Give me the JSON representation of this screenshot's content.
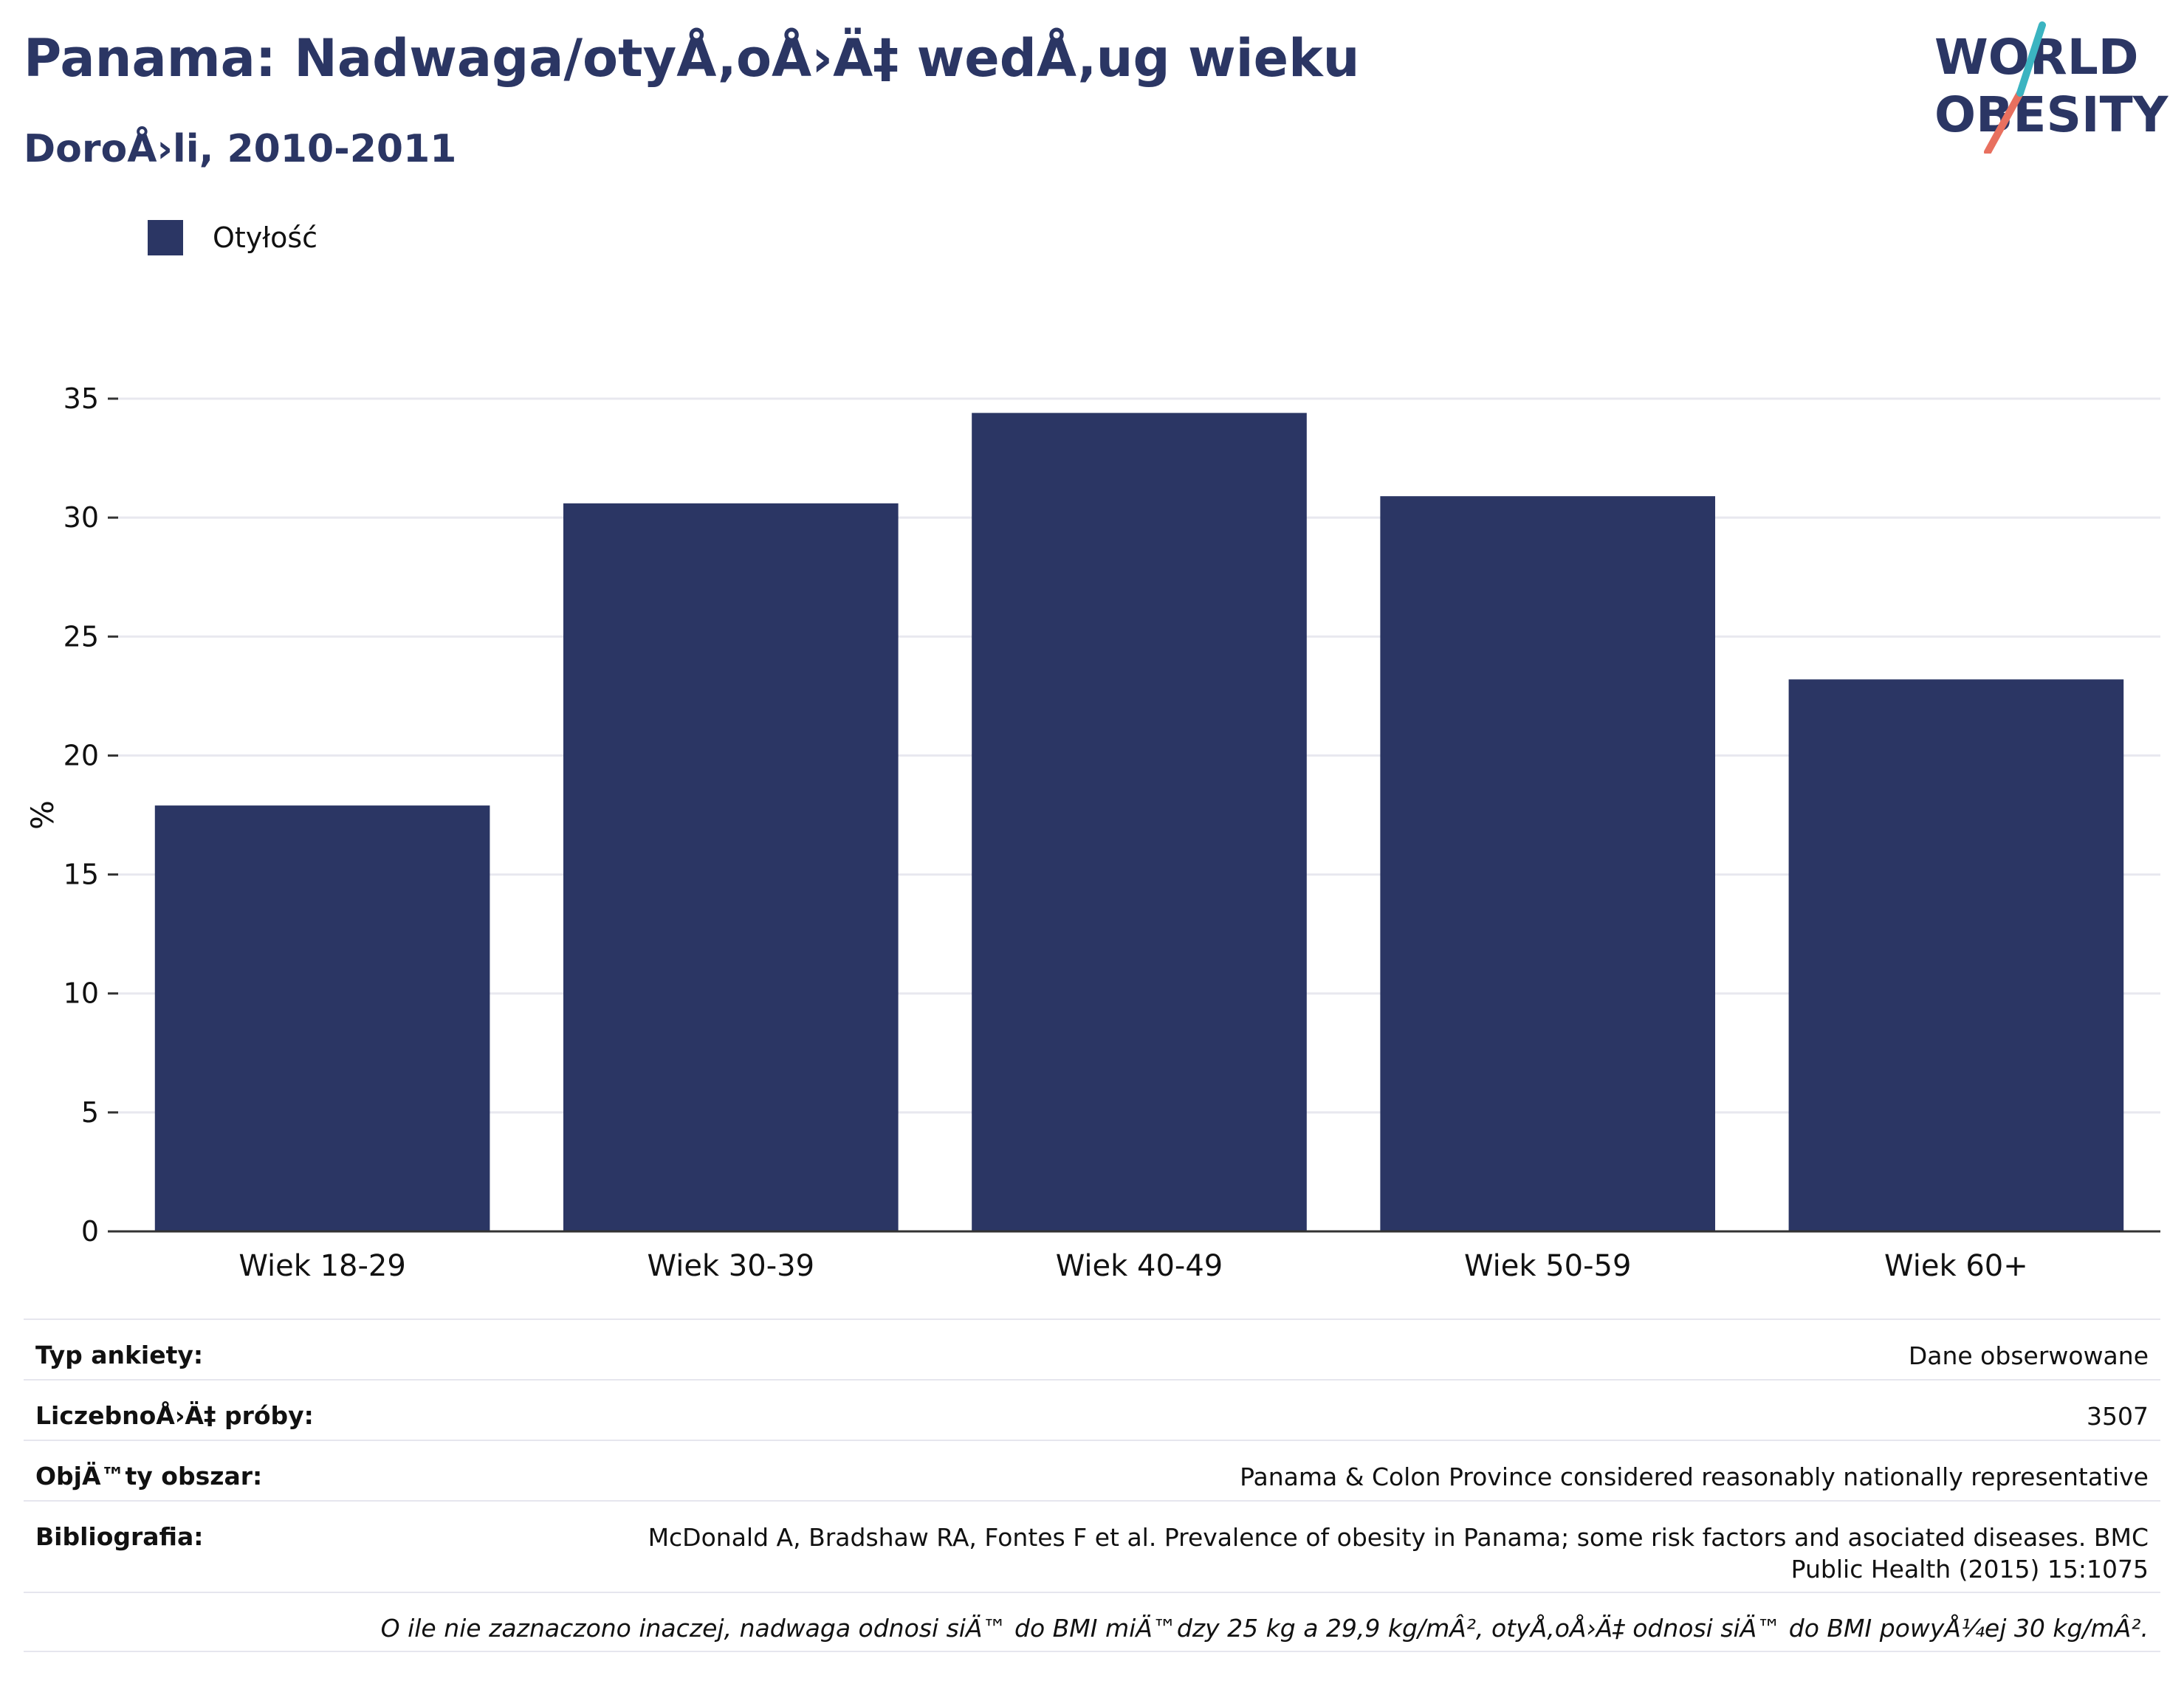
{
  "header": {
    "title": "Panama: Nadwaga/otyÅ‚oÅ›Ä‡ wedÅ‚ug wieku",
    "subtitle": "DoroÅ›li, 2010-2011"
  },
  "logo": {
    "line1": "WORLD",
    "line2": "OBESITY"
  },
  "legend": {
    "label": "Otyłość"
  },
  "colors": {
    "bar": "#2b3664",
    "accent_teal": "#3bb4c1",
    "accent_coral": "#e8705f"
  },
  "chart_data": {
    "type": "bar",
    "categories": [
      "Wiek 18-29",
      "Wiek 30-39",
      "Wiek 40-49",
      "Wiek 50-59",
      "Wiek 60+"
    ],
    "series": [
      {
        "name": "Otyłość",
        "values": [
          17.9,
          30.6,
          34.4,
          30.9,
          23.2
        ]
      }
    ],
    "ylabel": "%",
    "ylim": [
      0,
      35
    ],
    "yticks": [
      0,
      5,
      10,
      15,
      20,
      25,
      30,
      35
    ],
    "grid": true,
    "legend_position": "top-left"
  },
  "info": {
    "rows": [
      {
        "key": "Typ ankiety:",
        "value": "Dane obserwowane"
      },
      {
        "key": "LiczebnoÅ›Ä‡ próby:",
        "value": "3507"
      },
      {
        "key": "ObjÄ™ty obszar:",
        "value": "Panama & Colon Province considered reasonably nationally representative"
      },
      {
        "key": "Bibliografia:",
        "value": "McDonald A, Bradshaw RA, Fontes F et al. Prevalence of obesity in Panama; some risk factors and asociated diseases. BMC Public Health (2015) 15:1075"
      }
    ],
    "note": "O ile nie zaznaczono inaczej, nadwaga odnosi siÄ™ do BMI miÄ™dzy 25 kg a 29,9 kg/mÂ², otyÅ‚oÅ›Ä‡ odnosi siÄ™ do BMI powyÅ¼ej 30 kg/mÂ²."
  }
}
